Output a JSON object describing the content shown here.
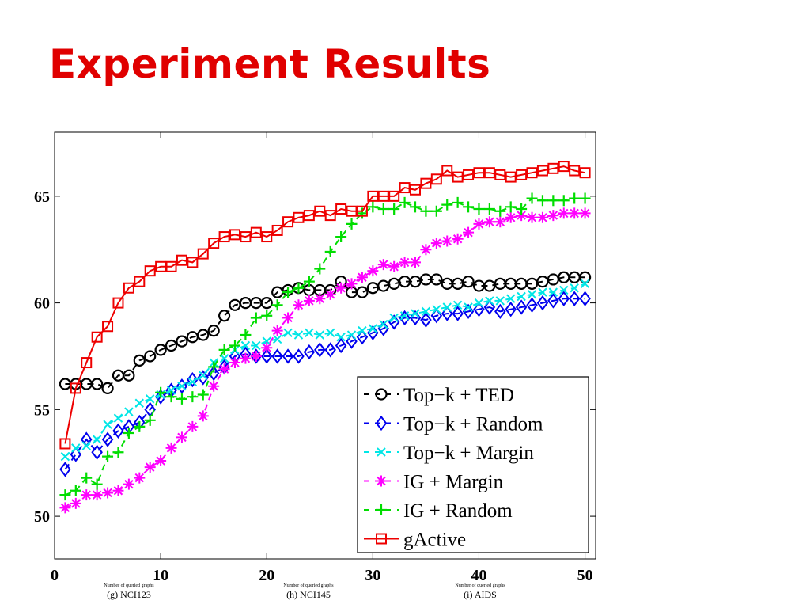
{
  "slide": {
    "title": "Experiment Results"
  },
  "captions": [
    {
      "text": "(g) NCI123",
      "faded": "Number of queried graphs"
    },
    {
      "text": "(h) NCI145",
      "faded": "Number of queried graphs"
    },
    {
      "text": "(i) AIDS",
      "faded": "Number of queried graphs"
    }
  ],
  "chart_data": {
    "type": "line",
    "title": "",
    "xlabel": "",
    "ylabel": "",
    "xlim": [
      0,
      51
    ],
    "ylim": [
      48,
      68
    ],
    "xticks": [
      0,
      10,
      20,
      30,
      40,
      50
    ],
    "yticks": [
      50,
      55,
      60,
      65
    ],
    "grid": false,
    "legend_position": "bottom-right",
    "x": [
      1,
      2,
      3,
      4,
      5,
      6,
      7,
      8,
      9,
      10,
      11,
      12,
      13,
      14,
      15,
      16,
      17,
      18,
      19,
      20,
      21,
      22,
      23,
      24,
      25,
      26,
      27,
      28,
      29,
      30,
      31,
      32,
      33,
      34,
      35,
      36,
      37,
      38,
      39,
      40,
      41,
      42,
      43,
      44,
      45,
      46,
      47,
      48,
      49,
      50
    ],
    "series": [
      {
        "name": "Top−k + TED",
        "line_label": "-Θ-",
        "color": "#000000",
        "marker": "circle",
        "dash": "8,6",
        "values": [
          56.2,
          56.2,
          56.2,
          56.2,
          56.0,
          56.6,
          56.6,
          57.3,
          57.5,
          57.8,
          58.0,
          58.2,
          58.4,
          58.5,
          58.7,
          59.4,
          59.9,
          60.0,
          60.0,
          60.0,
          60.5,
          60.6,
          60.7,
          60.6,
          60.6,
          60.6,
          61.0,
          60.5,
          60.5,
          60.7,
          60.8,
          60.9,
          61.0,
          61.0,
          61.1,
          61.1,
          60.9,
          60.9,
          61.0,
          60.8,
          60.8,
          60.9,
          60.9,
          60.9,
          60.9,
          61.0,
          61.1,
          61.2,
          61.2,
          61.2
        ]
      },
      {
        "name": "Top−k + Random",
        "line_label": "-◇-",
        "color": "#0000ee",
        "marker": "diamond",
        "dash": "8,6",
        "values": [
          52.2,
          52.9,
          53.6,
          53.0,
          53.6,
          54.0,
          54.2,
          54.4,
          55.0,
          55.6,
          55.9,
          56.1,
          56.4,
          56.5,
          56.7,
          57.0,
          57.5,
          57.6,
          57.5,
          57.5,
          57.5,
          57.5,
          57.5,
          57.7,
          57.8,
          57.8,
          58.0,
          58.2,
          58.4,
          58.6,
          58.8,
          59.1,
          59.3,
          59.3,
          59.2,
          59.4,
          59.5,
          59.5,
          59.6,
          59.7,
          59.8,
          59.6,
          59.7,
          59.8,
          59.9,
          60.0,
          60.1,
          60.2,
          60.2,
          60.2
        ]
      },
      {
        "name": "Top−k + Margin",
        "line_label": "-×-",
        "color": "#00e6e6",
        "marker": "x",
        "dash": "8,6",
        "values": [
          52.8,
          53.2,
          53.3,
          53.6,
          54.3,
          54.6,
          54.9,
          55.3,
          55.5,
          55.7,
          55.9,
          56.1,
          56.3,
          56.6,
          57.2,
          57.4,
          57.8,
          58.0,
          58.0,
          58.2,
          58.3,
          58.6,
          58.5,
          58.6,
          58.5,
          58.6,
          58.4,
          58.5,
          58.7,
          58.8,
          59.0,
          59.3,
          59.4,
          59.5,
          59.6,
          59.7,
          59.8,
          59.9,
          59.8,
          60.0,
          60.1,
          60.1,
          60.2,
          60.3,
          60.4,
          60.5,
          60.5,
          60.6,
          60.7,
          60.9
        ]
      },
      {
        "name": "IG + Margin",
        "line_label": "-✱-",
        "color": "#ff00ff",
        "marker": "asterisk",
        "dash": "8,6",
        "values": [
          50.4,
          50.6,
          51.0,
          51.0,
          51.1,
          51.2,
          51.5,
          51.8,
          52.3,
          52.6,
          53.2,
          53.7,
          54.2,
          54.7,
          56.1,
          56.9,
          57.2,
          57.4,
          57.5,
          57.9,
          58.7,
          59.3,
          59.9,
          60.1,
          60.2,
          60.4,
          60.7,
          60.9,
          61.2,
          61.5,
          61.8,
          61.7,
          61.9,
          61.9,
          62.5,
          62.8,
          62.9,
          63.0,
          63.3,
          63.7,
          63.8,
          63.8,
          64.0,
          64.1,
          64.0,
          64.0,
          64.1,
          64.2,
          64.2,
          64.2
        ]
      },
      {
        "name": "IG + Random",
        "line_label": "-+-",
        "color": "#00dd00",
        "marker": "plus",
        "dash": "8,6",
        "values": [
          51.0,
          51.2,
          51.8,
          51.5,
          52.8,
          53.0,
          53.9,
          54.2,
          54.5,
          55.8,
          55.6,
          55.5,
          55.6,
          55.7,
          57.0,
          57.8,
          58.0,
          58.5,
          59.3,
          59.4,
          59.9,
          60.5,
          60.7,
          61.0,
          61.6,
          62.4,
          63.1,
          63.7,
          64.2,
          64.5,
          64.4,
          64.4,
          64.7,
          64.5,
          64.3,
          64.3,
          64.6,
          64.7,
          64.5,
          64.4,
          64.4,
          64.3,
          64.5,
          64.4,
          64.9,
          64.8,
          64.8,
          64.8,
          64.9,
          64.9
        ]
      },
      {
        "name": "gActive",
        "line_label": "—□—",
        "color": "#ee0000",
        "marker": "square",
        "dash": "none",
        "values": [
          53.4,
          56.0,
          57.2,
          58.4,
          58.9,
          60.0,
          60.7,
          61.0,
          61.5,
          61.7,
          61.7,
          62.0,
          61.9,
          62.3,
          62.8,
          63.1,
          63.2,
          63.1,
          63.3,
          63.1,
          63.4,
          63.8,
          64.0,
          64.1,
          64.3,
          64.1,
          64.4,
          64.3,
          64.3,
          65.0,
          65.0,
          65.0,
          65.4,
          65.3,
          65.6,
          65.8,
          66.2,
          65.9,
          66.0,
          66.1,
          66.1,
          66.0,
          65.9,
          66.0,
          66.1,
          66.2,
          66.3,
          66.4,
          66.2,
          66.1
        ]
      }
    ]
  }
}
